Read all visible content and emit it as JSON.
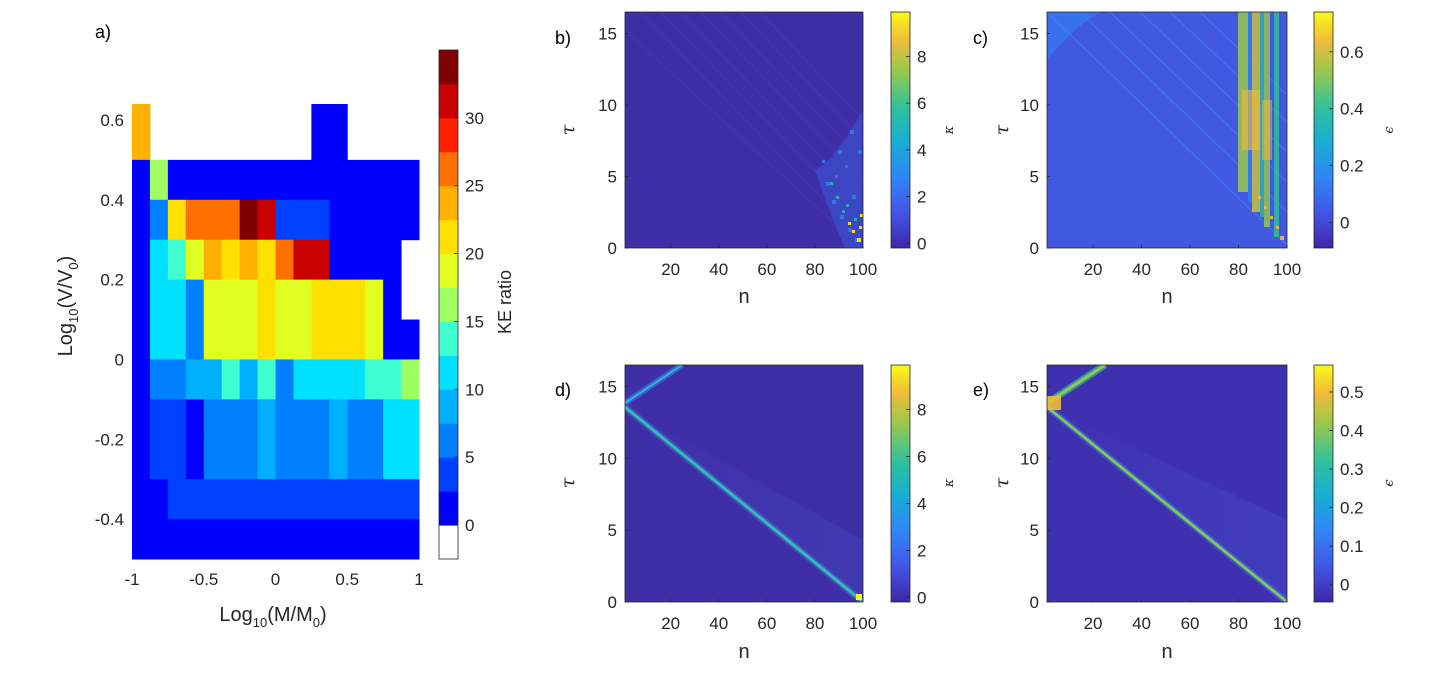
{
  "chart_data": [
    {
      "panel": "a)",
      "type": "heatmap",
      "xlabel_base": "Log",
      "xlabel_sub": "10",
      "xlabel_arg": "(M/M",
      "xlabel_argsub": "0",
      "xlabel_close": ")",
      "ylabel_base": "Log",
      "ylabel_sub": "10",
      "ylabel_arg": "(V/V",
      "ylabel_argsub": "0",
      "ylabel_close": ")",
      "xlim": [
        -1,
        1
      ],
      "ylim": [
        -0.5,
        0.65
      ],
      "xticks": [
        "-1",
        "-0.5",
        "0",
        "0.5",
        "1"
      ],
      "xtick_values": [
        -1,
        -0.5,
        0,
        0.5,
        1
      ],
      "yticks": [
        "0.6",
        "0.4",
        "0.2",
        "0",
        "-0.2",
        "-0.4"
      ],
      "ytick_values": [
        0.6,
        0.4,
        0.2,
        0,
        -0.2,
        -0.4
      ],
      "colorbar_label": "KE ratio",
      "colorbar_ticks": [
        "0",
        "5",
        "10",
        "15",
        "20",
        "25",
        "30"
      ],
      "colorbar_tick_values": [
        0,
        5,
        10,
        15,
        20,
        25,
        30
      ],
      "colorbar_range": [
        -2.5,
        35
      ],
      "colorbar_levels": [
        "#ffffff",
        "#0000ff",
        "#0040ff",
        "#0080ff",
        "#00b0ff",
        "#00e0ff",
        "#40ffd0",
        "#a0ff60",
        "#e0ff20",
        "#ffe000",
        "#ffb000",
        "#ff7000",
        "#ff2000",
        "#c80000",
        "#800000"
      ],
      "cells": [
        {
          "x0": -1.0,
          "x1": -0.875,
          "y0": 0.5,
          "y1": 0.6,
          "v": 24
        },
        {
          "x0": 0.25,
          "x1": 0.5,
          "y0": 0.5,
          "y1": 0.6,
          "v": 1
        },
        {
          "x0": -1.0,
          "x1": -0.875,
          "y0": 0.4,
          "y1": 0.5,
          "v": 1
        },
        {
          "x0": -0.875,
          "x1": -0.75,
          "y0": 0.4,
          "y1": 0.5,
          "v": 15
        },
        {
          "x0": -0.75,
          "x1": 1.0,
          "y0": 0.4,
          "y1": 0.5,
          "v": 1
        },
        {
          "x0": -1.0,
          "x1": -0.875,
          "y0": 0.3,
          "y1": 0.4,
          "v": 1
        },
        {
          "x0": -0.875,
          "x1": -0.75,
          "y0": 0.3,
          "y1": 0.4,
          "v": 7
        },
        {
          "x0": -0.75,
          "x1": -0.625,
          "y0": 0.3,
          "y1": 0.4,
          "v": 22
        },
        {
          "x0": -0.625,
          "x1": -0.25,
          "y0": 0.3,
          "y1": 0.4,
          "v": 27
        },
        {
          "x0": -0.25,
          "x1": -0.125,
          "y0": 0.3,
          "y1": 0.4,
          "v": 34
        },
        {
          "x0": -0.125,
          "x1": 0.0,
          "y0": 0.3,
          "y1": 0.4,
          "v": 31
        },
        {
          "x0": 0.0,
          "x1": 0.375,
          "y0": 0.3,
          "y1": 0.4,
          "v": 4
        },
        {
          "x0": 0.375,
          "x1": 1.0,
          "y0": 0.3,
          "y1": 0.4,
          "v": 1
        },
        {
          "x0": -1.0,
          "x1": -0.875,
          "y0": 0.2,
          "y1": 0.3,
          "v": 1
        },
        {
          "x0": -0.875,
          "x1": -0.75,
          "y0": 0.2,
          "y1": 0.3,
          "v": 10
        },
        {
          "x0": -0.75,
          "x1": -0.625,
          "y0": 0.2,
          "y1": 0.3,
          "v": 14
        },
        {
          "x0": -0.625,
          "x1": -0.5,
          "y0": 0.2,
          "y1": 0.3,
          "v": 18
        },
        {
          "x0": -0.5,
          "x1": -0.375,
          "y0": 0.2,
          "y1": 0.3,
          "v": 24
        },
        {
          "x0": -0.375,
          "x1": -0.25,
          "y0": 0.2,
          "y1": 0.3,
          "v": 22
        },
        {
          "x0": -0.25,
          "x1": -0.125,
          "y0": 0.2,
          "y1": 0.3,
          "v": 24
        },
        {
          "x0": -0.125,
          "x1": 0.0,
          "y0": 0.2,
          "y1": 0.3,
          "v": 22
        },
        {
          "x0": 0.0,
          "x1": 0.125,
          "y0": 0.2,
          "y1": 0.3,
          "v": 27
        },
        {
          "x0": 0.125,
          "x1": 0.375,
          "y0": 0.2,
          "y1": 0.3,
          "v": 31
        },
        {
          "x0": 0.375,
          "x1": 0.875,
          "y0": 0.2,
          "y1": 0.3,
          "v": 1
        },
        {
          "x0": -1.0,
          "x1": -0.875,
          "y0": 0.1,
          "y1": 0.2,
          "v": 2
        },
        {
          "x0": -0.875,
          "x1": -0.625,
          "y0": 0.1,
          "y1": 0.2,
          "v": 10
        },
        {
          "x0": -0.625,
          "x1": -0.5,
          "y0": 0.1,
          "y1": 0.2,
          "v": 7
        },
        {
          "x0": -0.5,
          "x1": -0.125,
          "y0": 0.1,
          "y1": 0.2,
          "v": 18
        },
        {
          "x0": -0.125,
          "x1": 0.0,
          "y0": 0.1,
          "y1": 0.2,
          "v": 22
        },
        {
          "x0": 0.0,
          "x1": 0.25,
          "y0": 0.1,
          "y1": 0.2,
          "v": 18
        },
        {
          "x0": 0.25,
          "x1": 0.625,
          "y0": 0.1,
          "y1": 0.2,
          "v": 20
        },
        {
          "x0": 0.625,
          "x1": 0.75,
          "y0": 0.1,
          "y1": 0.2,
          "v": 18
        },
        {
          "x0": 0.75,
          "x1": 0.875,
          "y0": 0.1,
          "y1": 0.2,
          "v": 1
        },
        {
          "x0": -1.0,
          "x1": -0.875,
          "y0": 0.0,
          "y1": 0.1,
          "v": 2
        },
        {
          "x0": -0.875,
          "x1": -0.625,
          "y0": 0.0,
          "y1": 0.1,
          "v": 10
        },
        {
          "x0": -0.625,
          "x1": -0.5,
          "y0": 0.0,
          "y1": 0.1,
          "v": 7
        },
        {
          "x0": -0.5,
          "x1": -0.125,
          "y0": 0.0,
          "y1": 0.1,
          "v": 18
        },
        {
          "x0": -0.125,
          "x1": 0.0,
          "y0": 0.0,
          "y1": 0.1,
          "v": 22
        },
        {
          "x0": 0.0,
          "x1": 0.25,
          "y0": 0.0,
          "y1": 0.1,
          "v": 18
        },
        {
          "x0": 0.25,
          "x1": 0.625,
          "y0": 0.0,
          "y1": 0.1,
          "v": 20
        },
        {
          "x0": 0.625,
          "x1": 0.75,
          "y0": 0.0,
          "y1": 0.1,
          "v": 18
        },
        {
          "x0": 0.75,
          "x1": 1.0,
          "y0": 0.0,
          "y1": 0.1,
          "v": 1
        },
        {
          "x0": -1.0,
          "x1": -0.875,
          "y0": -0.1,
          "y1": 0.0,
          "v": 1
        },
        {
          "x0": -0.875,
          "x1": -0.625,
          "y0": -0.1,
          "y1": 0.0,
          "v": 7
        },
        {
          "x0": -0.625,
          "x1": -0.375,
          "y0": -0.1,
          "y1": 0.0,
          "v": 9
        },
        {
          "x0": -0.375,
          "x1": -0.25,
          "y0": -0.1,
          "y1": 0.0,
          "v": 13
        },
        {
          "x0": -0.25,
          "x1": -0.125,
          "y0": -0.1,
          "y1": 0.0,
          "v": 9
        },
        {
          "x0": -0.125,
          "x1": 0.0,
          "y0": -0.1,
          "y1": 0.0,
          "v": 13
        },
        {
          "x0": 0.0,
          "x1": 0.125,
          "y0": -0.1,
          "y1": 0.0,
          "v": 7
        },
        {
          "x0": 0.125,
          "x1": 0.625,
          "y0": -0.1,
          "y1": 0.0,
          "v": 11
        },
        {
          "x0": 0.625,
          "x1": 0.875,
          "y0": -0.1,
          "y1": 0.0,
          "v": 13
        },
        {
          "x0": 0.875,
          "x1": 1.0,
          "y0": -0.1,
          "y1": 0.0,
          "v": 17
        },
        {
          "x0": -1.0,
          "x1": -0.875,
          "y0": -0.2,
          "y1": -0.1,
          "v": 1
        },
        {
          "x0": -0.875,
          "x1": -0.625,
          "y0": -0.2,
          "y1": -0.1,
          "v": 4
        },
        {
          "x0": -0.625,
          "x1": -0.5,
          "y0": -0.2,
          "y1": -0.1,
          "v": 2
        },
        {
          "x0": -0.5,
          "x1": -0.125,
          "y0": -0.2,
          "y1": -0.1,
          "v": 6
        },
        {
          "x0": -0.125,
          "x1": 0.0,
          "y0": -0.2,
          "y1": -0.1,
          "v": 9
        },
        {
          "x0": 0.0,
          "x1": 0.375,
          "y0": -0.2,
          "y1": -0.1,
          "v": 6
        },
        {
          "x0": 0.375,
          "x1": 0.5,
          "y0": -0.2,
          "y1": -0.1,
          "v": 9
        },
        {
          "x0": 0.5,
          "x1": 0.75,
          "y0": -0.2,
          "y1": -0.1,
          "v": 6
        },
        {
          "x0": 0.75,
          "x1": 1.0,
          "y0": -0.2,
          "y1": -0.1,
          "v": 10
        },
        {
          "x0": -1.0,
          "x1": -0.875,
          "y0": -0.3,
          "y1": -0.2,
          "v": 1
        },
        {
          "x0": -0.875,
          "x1": -0.625,
          "y0": -0.3,
          "y1": -0.2,
          "v": 4
        },
        {
          "x0": -0.625,
          "x1": -0.5,
          "y0": -0.3,
          "y1": -0.2,
          "v": 2
        },
        {
          "x0": -0.5,
          "x1": -0.125,
          "y0": -0.3,
          "y1": -0.2,
          "v": 6
        },
        {
          "x0": -0.125,
          "x1": 0.0,
          "y0": -0.3,
          "y1": -0.2,
          "v": 9
        },
        {
          "x0": 0.0,
          "x1": 0.375,
          "y0": -0.3,
          "y1": -0.2,
          "v": 6
        },
        {
          "x0": 0.375,
          "x1": 0.5,
          "y0": -0.3,
          "y1": -0.2,
          "v": 9
        },
        {
          "x0": 0.5,
          "x1": 0.75,
          "y0": -0.3,
          "y1": -0.2,
          "v": 6
        },
        {
          "x0": 0.75,
          "x1": 1.0,
          "y0": -0.3,
          "y1": -0.2,
          "v": 10
        },
        {
          "x0": -1.0,
          "x1": -0.75,
          "y0": -0.4,
          "y1": -0.3,
          "v": 1
        },
        {
          "x0": -0.75,
          "x1": 1.0,
          "y0": -0.4,
          "y1": -0.3,
          "v": 3
        },
        {
          "x0": -1.0,
          "x1": 1.0,
          "y0": -0.5,
          "y1": -0.4,
          "v": 1
        }
      ]
    },
    {
      "panel": "b)",
      "type": "heatmap",
      "xlabel": "n",
      "ylabel": "τ",
      "xlim": [
        1,
        100
      ],
      "ylim": [
        0,
        16.5
      ],
      "xticks": [
        "20",
        "40",
        "60",
        "80",
        "100"
      ],
      "xtick_values": [
        20,
        40,
        60,
        80,
        100
      ],
      "yticks": [
        "0",
        "5",
        "10",
        "15"
      ],
      "ytick_values": [
        0,
        5,
        10,
        15
      ],
      "colorbar_label": "κ",
      "colorbar_ticks": [
        "0",
        "2",
        "4",
        "6",
        "8"
      ],
      "colorbar_tick_values": [
        0,
        2,
        4,
        6,
        8
      ],
      "colorbar_range": [
        -0.2,
        9.9
      ]
    },
    {
      "panel": "c)",
      "type": "heatmap",
      "xlabel": "n",
      "ylabel": "τ",
      "xlim": [
        1,
        100
      ],
      "ylim": [
        0,
        16.5
      ],
      "xticks": [
        "20",
        "40",
        "60",
        "80",
        "100"
      ],
      "xtick_values": [
        20,
        40,
        60,
        80,
        100
      ],
      "yticks": [
        "0",
        "5",
        "10",
        "15"
      ],
      "ytick_values": [
        0,
        5,
        10,
        15
      ],
      "colorbar_label": "ϵ",
      "colorbar_ticks": [
        "0",
        "0.2",
        "0.4",
        "0.6"
      ],
      "colorbar_tick_values": [
        0,
        0.2,
        0.4,
        0.6
      ],
      "colorbar_range": [
        -0.09,
        0.74
      ]
    },
    {
      "panel": "d)",
      "type": "heatmap",
      "xlabel": "n",
      "ylabel": "τ",
      "xlim": [
        1,
        100
      ],
      "ylim": [
        0,
        16.5
      ],
      "xticks": [
        "20",
        "40",
        "60",
        "80",
        "100"
      ],
      "xtick_values": [
        20,
        40,
        60,
        80,
        100
      ],
      "yticks": [
        "0",
        "5",
        "10",
        "15"
      ],
      "ytick_values": [
        0,
        5,
        10,
        15
      ],
      "colorbar_label": "κ",
      "colorbar_ticks": [
        "0",
        "2",
        "4",
        "6",
        "8"
      ],
      "colorbar_tick_values": [
        0,
        2,
        4,
        6,
        8
      ],
      "colorbar_range": [
        -0.2,
        9.9
      ]
    },
    {
      "panel": "e)",
      "type": "heatmap",
      "xlabel": "n",
      "ylabel": "τ",
      "xlim": [
        1,
        100
      ],
      "ylim": [
        0,
        16.5
      ],
      "xticks": [
        "20",
        "40",
        "60",
        "80",
        "100"
      ],
      "xtick_values": [
        20,
        40,
        60,
        80,
        100
      ],
      "yticks": [
        "0",
        "5",
        "10",
        "15"
      ],
      "ytick_values": [
        0,
        5,
        10,
        15
      ],
      "colorbar_label": "ϵ",
      "colorbar_ticks": [
        "0",
        "0.1",
        "0.2",
        "0.3",
        "0.4",
        "0.5"
      ],
      "colorbar_tick_values": [
        0,
        0.1,
        0.2,
        0.3,
        0.4,
        0.5
      ],
      "colorbar_range": [
        -0.045,
        0.57
      ]
    }
  ]
}
